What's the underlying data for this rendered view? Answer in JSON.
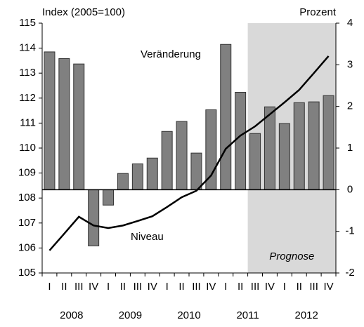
{
  "chart_data": {
    "type": "bar-line",
    "y_label": "Index (2005=100)",
    "y2_label": "Prozent",
    "categories": [
      "I",
      "II",
      "III",
      "IV",
      "I",
      "II",
      "III",
      "IV",
      "I",
      "II",
      "III",
      "IV",
      "I",
      "II",
      "III",
      "IV",
      "I",
      "II",
      "III",
      "IV"
    ],
    "years": [
      "2008",
      "2009",
      "2010",
      "2011",
      "2012"
    ],
    "series": [
      {
        "name": "Veränderung",
        "type": "bar",
        "axis": "y2",
        "color": "#808080",
        "values": [
          3.31,
          3.15,
          3.02,
          -1.35,
          -0.37,
          0.39,
          0.62,
          0.76,
          1.4,
          1.64,
          0.88,
          1.92,
          3.49,
          2.34,
          1.35,
          1.99,
          1.59,
          2.09,
          2.11,
          2.26
        ]
      },
      {
        "name": "Niveau",
        "type": "line",
        "axis": "y",
        "color": "#000000",
        "values": [
          105.9,
          106.57,
          107.25,
          106.9,
          106.8,
          106.9,
          107.08,
          107.27,
          107.64,
          108.03,
          108.29,
          108.9,
          109.97,
          110.5,
          110.87,
          111.35,
          111.83,
          112.33,
          113.0,
          113.68
        ]
      }
    ],
    "forecast": {
      "label": "Prognose",
      "start_index": 14
    },
    "ylim": [
      105,
      115
    ],
    "yticks": [
      105,
      106,
      107,
      108,
      109,
      110,
      111,
      112,
      113,
      114,
      115
    ],
    "y2lim": [
      -2,
      4
    ],
    "y2ticks": [
      -2,
      -1,
      0,
      1,
      2,
      3,
      4
    ]
  }
}
